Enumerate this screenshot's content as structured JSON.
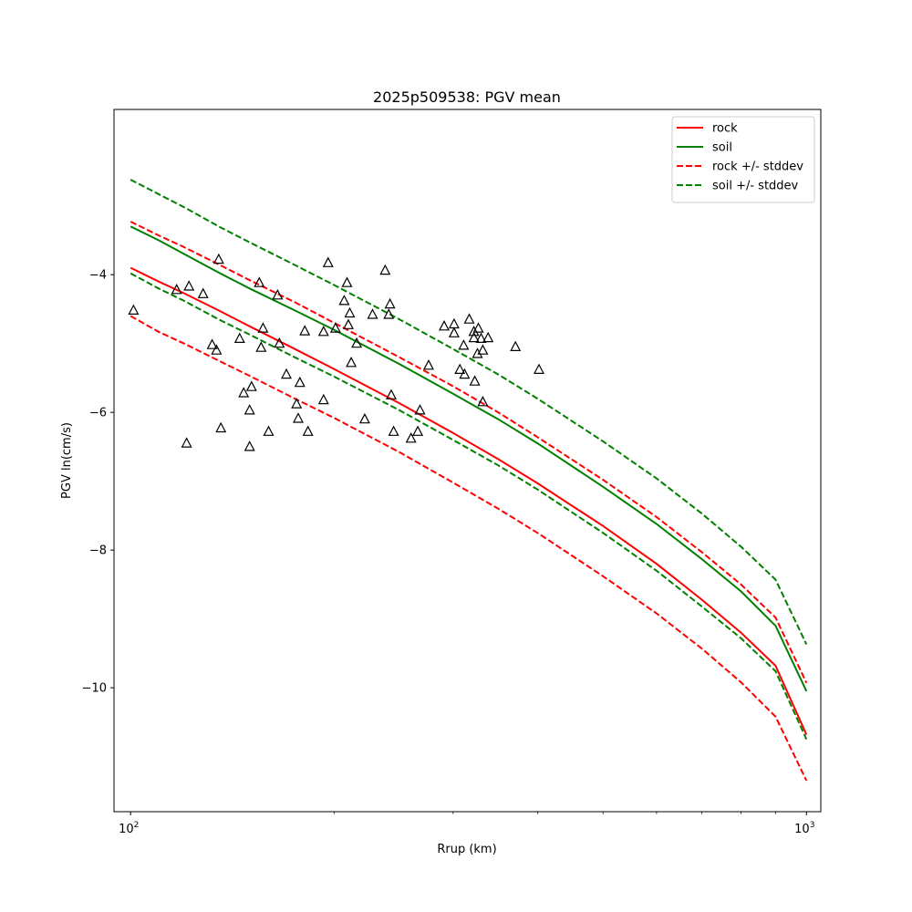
{
  "chart_data": {
    "type": "line",
    "title": "2025p509538: PGV mean",
    "xlabel": "Rrup (km)",
    "ylabel": "PGV ln(cm/s)",
    "xscale": "log",
    "xlim": [
      94.5,
      1050
    ],
    "ylim": [
      -11.8,
      -1.6
    ],
    "xticks": [
      {
        "value": 100,
        "base": "10",
        "exp": "2"
      },
      {
        "value": 1000,
        "base": "10",
        "exp": "3"
      }
    ],
    "yticks": [
      {
        "value": -4,
        "label": "−4"
      },
      {
        "value": -6,
        "label": "−6"
      },
      {
        "value": -8,
        "label": "−8"
      },
      {
        "value": -10,
        "label": "−10"
      }
    ],
    "minor_xticks": [
      200,
      300,
      400,
      500,
      600,
      700,
      800,
      900
    ],
    "legend": {
      "position": "top-right"
    },
    "series": [
      {
        "name": "rock",
        "color": "#ff0000",
        "style": "solid",
        "x": [
          100,
          110,
          120,
          135,
          150,
          175,
          200,
          250,
          300,
          350,
          400,
          500,
          600,
          700,
          800,
          900,
          1000
        ],
        "y": [
          -3.9,
          -4.1,
          -4.27,
          -4.52,
          -4.75,
          -5.08,
          -5.37,
          -5.87,
          -6.3,
          -6.68,
          -7.03,
          -7.65,
          -8.2,
          -8.72,
          -9.2,
          -9.68,
          -10.68
        ]
      },
      {
        "name": "soil",
        "color": "#008000",
        "style": "solid",
        "x": [
          100,
          110,
          120,
          135,
          150,
          175,
          200,
          250,
          300,
          350,
          400,
          500,
          600,
          700,
          800,
          900,
          1000
        ],
        "y": [
          -3.3,
          -3.5,
          -3.7,
          -3.97,
          -4.2,
          -4.52,
          -4.8,
          -5.3,
          -5.73,
          -6.1,
          -6.45,
          -7.08,
          -7.62,
          -8.13,
          -8.6,
          -9.1,
          -10.05
        ]
      },
      {
        "name": "rock +/- stddev",
        "color": "#ff0000",
        "style": "dashed",
        "x": [
          100,
          110,
          120,
          135,
          150,
          175,
          200,
          250,
          300,
          350,
          400,
          500,
          600,
          700,
          800,
          900,
          1000
        ],
        "y": [
          -3.23,
          -3.43,
          -3.6,
          -3.85,
          -4.08,
          -4.4,
          -4.7,
          -5.2,
          -5.62,
          -6.0,
          -6.36,
          -6.98,
          -7.52,
          -8.03,
          -8.5,
          -8.98,
          -9.93
        ]
      },
      {
        "name": "rock +/- stddev (lower)",
        "color": "#ff0000",
        "style": "dashed",
        "x": [
          100,
          110,
          120,
          135,
          150,
          175,
          200,
          250,
          300,
          350,
          400,
          500,
          600,
          700,
          800,
          900,
          1000
        ],
        "y": [
          -4.6,
          -4.83,
          -5.0,
          -5.25,
          -5.47,
          -5.8,
          -6.08,
          -6.58,
          -7.02,
          -7.4,
          -7.75,
          -8.38,
          -8.92,
          -9.43,
          -9.92,
          -10.42,
          -11.35
        ]
      },
      {
        "name": "soil +/- stddev",
        "color": "#008000",
        "style": "dashed",
        "x": [
          100,
          110,
          120,
          135,
          150,
          175,
          200,
          250,
          300,
          350,
          400,
          500,
          600,
          700,
          800,
          900,
          1000
        ],
        "y": [
          -2.62,
          -2.83,
          -3.02,
          -3.3,
          -3.53,
          -3.86,
          -4.15,
          -4.65,
          -5.08,
          -5.45,
          -5.8,
          -6.42,
          -6.96,
          -7.47,
          -7.95,
          -8.43,
          -9.37
        ]
      },
      {
        "name": "soil +/- stddev (lower)",
        "color": "#008000",
        "style": "dashed",
        "x": [
          100,
          110,
          120,
          135,
          150,
          175,
          200,
          250,
          300,
          350,
          400,
          500,
          600,
          700,
          800,
          900,
          1000
        ],
        "y": [
          -3.98,
          -4.2,
          -4.38,
          -4.65,
          -4.87,
          -5.2,
          -5.48,
          -5.97,
          -6.4,
          -6.77,
          -7.12,
          -7.75,
          -8.3,
          -8.82,
          -9.28,
          -9.76,
          -10.75
        ]
      }
    ],
    "observations": {
      "marker": "triangle",
      "color": "#000000",
      "points": [
        [
          101,
          -4.52
        ],
        [
          117,
          -4.22
        ],
        [
          122,
          -4.17
        ],
        [
          128,
          -4.28
        ],
        [
          121,
          -6.45
        ],
        [
          132,
          -5.02
        ],
        [
          135,
          -3.78
        ],
        [
          134,
          -5.1
        ],
        [
          136,
          -6.23
        ],
        [
          145,
          -4.93
        ],
        [
          147,
          -5.72
        ],
        [
          151,
          -5.63
        ],
        [
          150,
          -5.97
        ],
        [
          150,
          -6.5
        ],
        [
          155,
          -4.12
        ],
        [
          157,
          -4.78
        ],
        [
          156,
          -5.06
        ],
        [
          160,
          -6.28
        ],
        [
          165,
          -4.3
        ],
        [
          166,
          -5.0
        ],
        [
          170,
          -5.45
        ],
        [
          176,
          -5.88
        ],
        [
          177,
          -6.09
        ],
        [
          178,
          -5.57
        ],
        [
          181,
          -4.82
        ],
        [
          183,
          -6.28
        ],
        [
          193,
          -4.83
        ],
        [
          193,
          -5.82
        ],
        [
          196,
          -3.83
        ],
        [
          201,
          -4.78
        ],
        [
          207,
          -4.38
        ],
        [
          209,
          -4.12
        ],
        [
          210,
          -4.73
        ],
        [
          211,
          -4.56
        ],
        [
          212,
          -5.28
        ],
        [
          216,
          -5.0
        ],
        [
          222,
          -6.1
        ],
        [
          228,
          -4.58
        ],
        [
          238,
          -3.94
        ],
        [
          241,
          -4.58
        ],
        [
          242,
          -4.43
        ],
        [
          243,
          -5.75
        ],
        [
          245,
          -6.28
        ],
        [
          260,
          -6.38
        ],
        [
          266,
          -6.28
        ],
        [
          268,
          -5.97
        ],
        [
          276,
          -5.32
        ],
        [
          291,
          -4.75
        ],
        [
          301,
          -4.72
        ],
        [
          301,
          -4.85
        ],
        [
          307,
          -5.38
        ],
        [
          311,
          -5.03
        ],
        [
          312,
          -5.45
        ],
        [
          317,
          -4.65
        ],
        [
          322,
          -4.83
        ],
        [
          322,
          -4.92
        ],
        [
          323,
          -5.55
        ],
        [
          326,
          -5.15
        ],
        [
          327,
          -4.78
        ],
        [
          330,
          -4.93
        ],
        [
          332,
          -5.1
        ],
        [
          332,
          -5.85
        ],
        [
          338,
          -4.92
        ],
        [
          371,
          -5.05
        ],
        [
          402,
          -5.38
        ]
      ]
    }
  }
}
